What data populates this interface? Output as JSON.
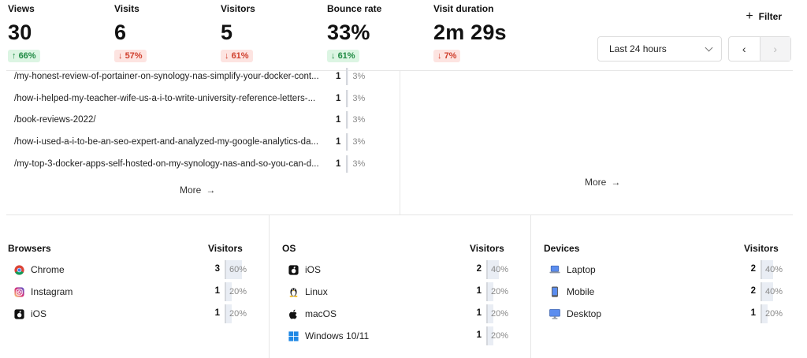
{
  "stats": [
    {
      "label": "Views",
      "value": "30",
      "change": "66%",
      "direction": "up"
    },
    {
      "label": "Visits",
      "value": "6",
      "change": "57%",
      "direction": "down"
    },
    {
      "label": "Visitors",
      "value": "5",
      "change": "61%",
      "direction": "down"
    },
    {
      "label": "Bounce rate",
      "value": "33%",
      "change": "61%",
      "direction": "up-good-down"
    },
    {
      "label": "Visit duration",
      "value": "2m 29s",
      "change": "7%",
      "direction": "down"
    }
  ],
  "toolbar": {
    "filter_label": "Filter",
    "range_label": "Last 24 hours",
    "prev_glyph": "‹",
    "next_glyph": "›"
  },
  "pages": {
    "rows": [
      {
        "path": "/my-honest-review-of-portainer-on-synology-nas-simplify-your-docker-cont...",
        "count": "1",
        "percent": "3%",
        "fraction": 0.03
      },
      {
        "path": "/how-i-helped-my-teacher-wife-us-a-i-to-write-university-reference-letters-...",
        "count": "1",
        "percent": "3%",
        "fraction": 0.03
      },
      {
        "path": "/book-reviews-2022/",
        "count": "1",
        "percent": "3%",
        "fraction": 0.03
      },
      {
        "path": "/how-i-used-a-i-to-be-an-seo-expert-and-analyzed-my-google-analytics-da...",
        "count": "1",
        "percent": "3%",
        "fraction": 0.03
      },
      {
        "path": "/my-top-3-docker-apps-self-hosted-on-my-synology-nas-and-so-you-can-d...",
        "count": "1",
        "percent": "3%",
        "fraction": 0.03
      }
    ],
    "more_label": "More",
    "more_arrow": "→"
  },
  "right_panel": {
    "more_label": "More",
    "more_arrow": "→"
  },
  "browsers": {
    "title": "Browsers",
    "column": "Visitors",
    "rows": [
      {
        "label": "Chrome",
        "icon": "chrome-icon",
        "count": "3",
        "percent": "60%",
        "fraction": 0.6
      },
      {
        "label": "Instagram",
        "icon": "instagram-icon",
        "count": "1",
        "percent": "20%",
        "fraction": 0.2
      },
      {
        "label": "iOS",
        "icon": "ios-icon",
        "count": "1",
        "percent": "20%",
        "fraction": 0.2
      }
    ]
  },
  "os": {
    "title": "OS",
    "column": "Visitors",
    "rows": [
      {
        "label": "iOS",
        "icon": "ios-icon",
        "count": "2",
        "percent": "40%",
        "fraction": 0.4
      },
      {
        "label": "Linux",
        "icon": "linux-icon",
        "count": "1",
        "percent": "20%",
        "fraction": 0.2
      },
      {
        "label": "macOS",
        "icon": "apple-icon",
        "count": "1",
        "percent": "20%",
        "fraction": 0.2
      },
      {
        "label": "Windows 10/11",
        "icon": "windows-icon",
        "count": "1",
        "percent": "20%",
        "fraction": 0.2
      }
    ]
  },
  "devices": {
    "title": "Devices",
    "column": "Visitors",
    "rows": [
      {
        "label": "Laptop",
        "icon": "laptop-icon",
        "count": "2",
        "percent": "40%",
        "fraction": 0.4
      },
      {
        "label": "Mobile",
        "icon": "mobile-icon",
        "count": "2",
        "percent": "40%",
        "fraction": 0.4
      },
      {
        "label": "Desktop",
        "icon": "desktop-icon",
        "count": "1",
        "percent": "20%",
        "fraction": 0.2
      }
    ]
  },
  "colors": {
    "up_bg": "#dcf5e3",
    "up_fg": "#1f8a43",
    "down_bg": "#fde4e1",
    "down_fg": "#d0402e"
  }
}
